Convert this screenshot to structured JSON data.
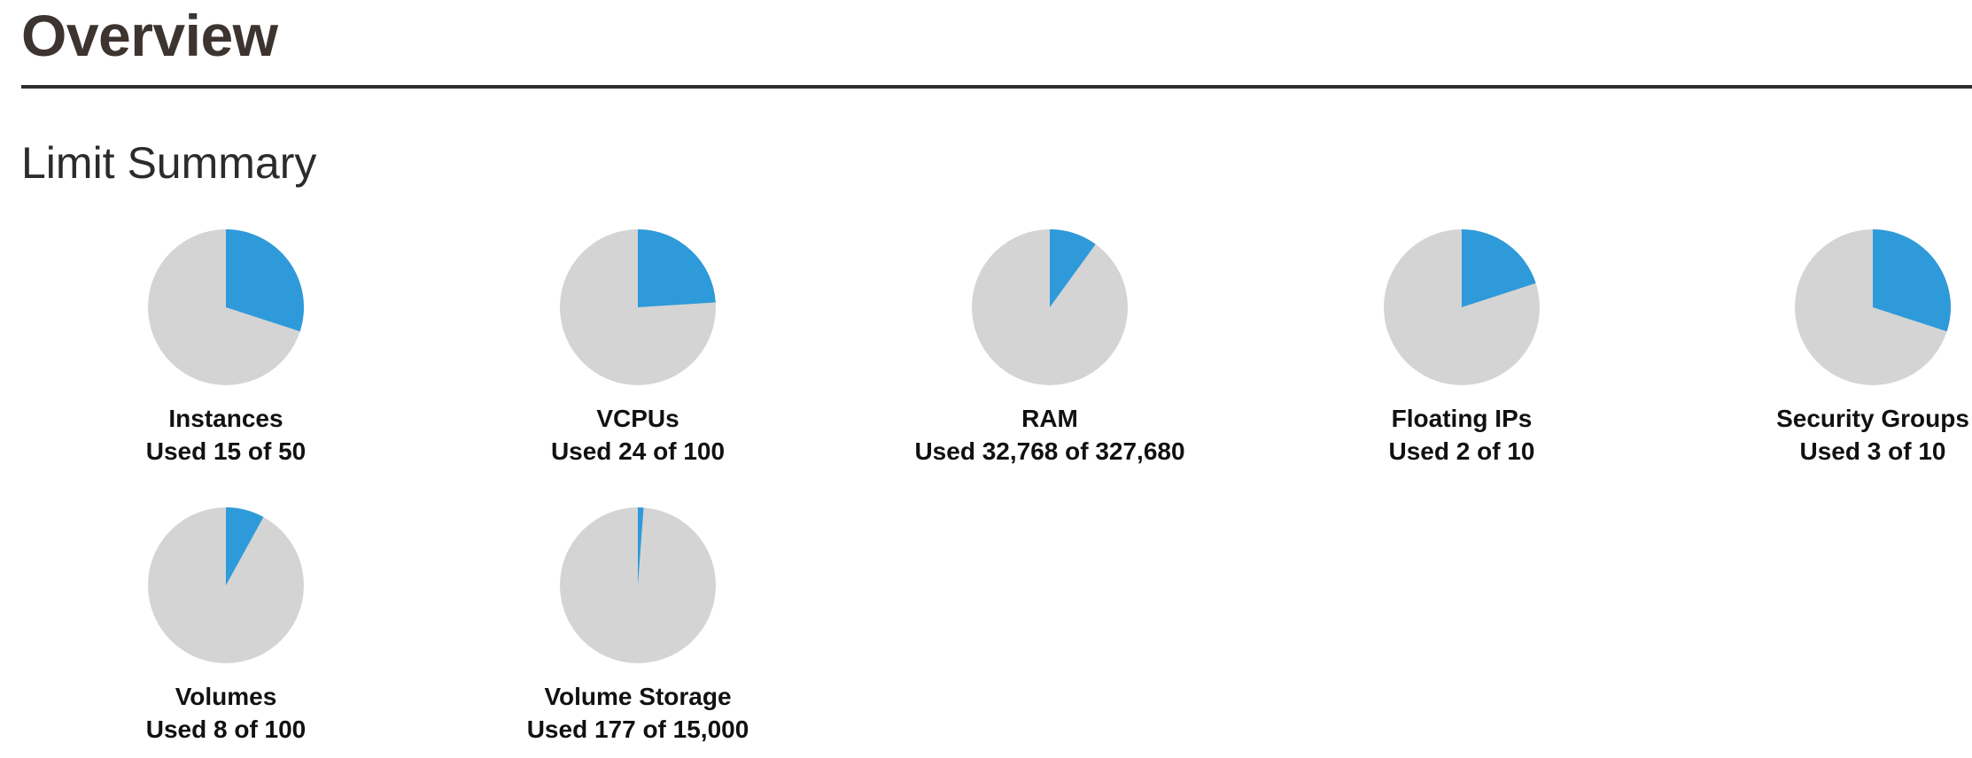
{
  "header": {
    "title": "Overview"
  },
  "limit_summary": {
    "title": "Limit Summary",
    "colors": {
      "used": "#2e9ada",
      "available": "#d4d4d4"
    },
    "charts": [
      {
        "label": "Instances",
        "usage_text": "Used 15 of 50",
        "used": 15,
        "total": 50
      },
      {
        "label": "VCPUs",
        "usage_text": "Used 24 of 100",
        "used": 24,
        "total": 100
      },
      {
        "label": "RAM",
        "usage_text": "Used 32,768 of 327,680",
        "used": 32768,
        "total": 327680
      },
      {
        "label": "Floating IPs",
        "usage_text": "Used 2 of 10",
        "used": 2,
        "total": 10
      },
      {
        "label": "Security Groups",
        "usage_text": "Used 3 of 10",
        "used": 3,
        "total": 10
      },
      {
        "label": "Volumes",
        "usage_text": "Used 8 of 100",
        "used": 8,
        "total": 100
      },
      {
        "label": "Volume Storage",
        "usage_text": "Used 177 of 15,000",
        "used": 177,
        "total": 15000
      }
    ]
  },
  "chart_data": [
    {
      "type": "pie",
      "title": "Instances",
      "labels": [
        "Used",
        "Available"
      ],
      "values": [
        15,
        35
      ]
    },
    {
      "type": "pie",
      "title": "VCPUs",
      "labels": [
        "Used",
        "Available"
      ],
      "values": [
        24,
        76
      ]
    },
    {
      "type": "pie",
      "title": "RAM",
      "labels": [
        "Used",
        "Available"
      ],
      "values": [
        32768,
        294912
      ]
    },
    {
      "type": "pie",
      "title": "Floating IPs",
      "labels": [
        "Used",
        "Available"
      ],
      "values": [
        2,
        8
      ]
    },
    {
      "type": "pie",
      "title": "Security Groups",
      "labels": [
        "Used",
        "Available"
      ],
      "values": [
        3,
        7
      ]
    },
    {
      "type": "pie",
      "title": "Volumes",
      "labels": [
        "Used",
        "Available"
      ],
      "values": [
        8,
        92
      ]
    },
    {
      "type": "pie",
      "title": "Volume Storage",
      "labels": [
        "Used",
        "Available"
      ],
      "values": [
        177,
        14823
      ]
    }
  ]
}
